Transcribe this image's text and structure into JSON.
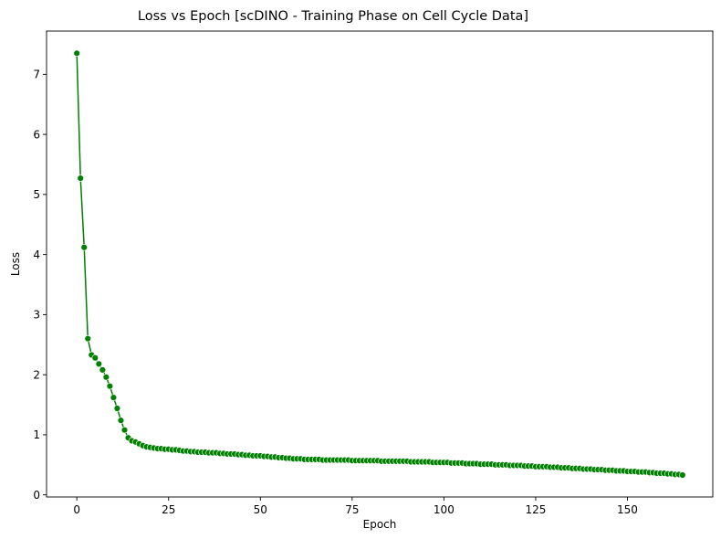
{
  "chart_data": {
    "type": "line",
    "title": "Loss vs Epoch [scDINO - Training Phase on Cell Cycle Data]",
    "xlabel": "Epoch",
    "ylabel": "Loss",
    "xlim": [
      -8.25,
      173.25
    ],
    "ylim": [
      -0.035,
      7.72
    ],
    "xticks": [
      0,
      25,
      50,
      75,
      100,
      125,
      150
    ],
    "yticks": [
      0,
      1,
      2,
      3,
      4,
      5,
      6,
      7
    ],
    "grid": false,
    "legend": "none",
    "color": "#008000",
    "marker": "circle",
    "series": [
      {
        "values": [
          7.35,
          5.27,
          4.12,
          2.6,
          2.33,
          2.28,
          2.18,
          2.08,
          1.96,
          1.81,
          1.62,
          1.44,
          1.24,
          1.08,
          0.95,
          0.9,
          0.88,
          0.85,
          0.82,
          0.8,
          0.79,
          0.78,
          0.77,
          0.77,
          0.76,
          0.76,
          0.75,
          0.75,
          0.74,
          0.73,
          0.73,
          0.72,
          0.72,
          0.71,
          0.71,
          0.71,
          0.7,
          0.7,
          0.7,
          0.69,
          0.69,
          0.68,
          0.68,
          0.68,
          0.67,
          0.67,
          0.66,
          0.66,
          0.65,
          0.65,
          0.65,
          0.64,
          0.64,
          0.63,
          0.63,
          0.62,
          0.62,
          0.61,
          0.61,
          0.6,
          0.6,
          0.6,
          0.59,
          0.59,
          0.59,
          0.59,
          0.59,
          0.58,
          0.58,
          0.58,
          0.58,
          0.58,
          0.58,
          0.58,
          0.58,
          0.57,
          0.57,
          0.57,
          0.57,
          0.57,
          0.57,
          0.57,
          0.57,
          0.56,
          0.56,
          0.56,
          0.56,
          0.56,
          0.56,
          0.56,
          0.56,
          0.55,
          0.55,
          0.55,
          0.55,
          0.55,
          0.55,
          0.54,
          0.54,
          0.54,
          0.54,
          0.54,
          0.53,
          0.53,
          0.53,
          0.53,
          0.52,
          0.52,
          0.52,
          0.52,
          0.51,
          0.51,
          0.51,
          0.51,
          0.5,
          0.5,
          0.5,
          0.5,
          0.49,
          0.49,
          0.49,
          0.49,
          0.48,
          0.48,
          0.48,
          0.47,
          0.47,
          0.47,
          0.47,
          0.46,
          0.46,
          0.46,
          0.45,
          0.45,
          0.45,
          0.44,
          0.44,
          0.44,
          0.43,
          0.43,
          0.43,
          0.42,
          0.42,
          0.42,
          0.41,
          0.41,
          0.41,
          0.4,
          0.4,
          0.4,
          0.39,
          0.39,
          0.39,
          0.38,
          0.38,
          0.38,
          0.37,
          0.37,
          0.36,
          0.36,
          0.36,
          0.35,
          0.35,
          0.34,
          0.34,
          0.33
        ]
      }
    ]
  }
}
